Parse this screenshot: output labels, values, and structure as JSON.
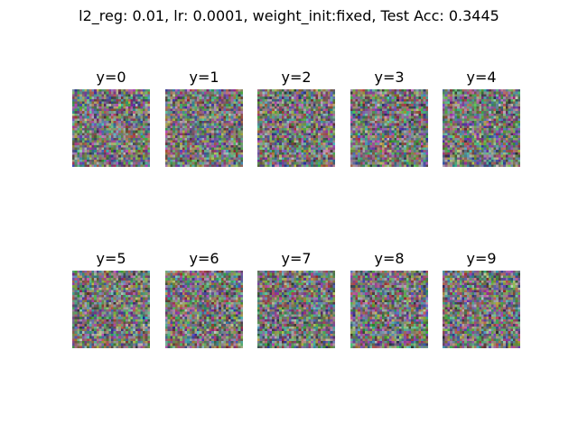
{
  "figure": {
    "title": "l2_reg: 0.01, lr: 0.0001, weight_init:fixed, Test Acc: 0.3445"
  },
  "panels": [
    {
      "label": "y=0"
    },
    {
      "label": "y=1"
    },
    {
      "label": "y=2"
    },
    {
      "label": "y=3"
    },
    {
      "label": "y=4"
    },
    {
      "label": "y=5"
    },
    {
      "label": "y=6"
    },
    {
      "label": "y=7"
    },
    {
      "label": "y=8"
    },
    {
      "label": "y=9"
    }
  ]
}
